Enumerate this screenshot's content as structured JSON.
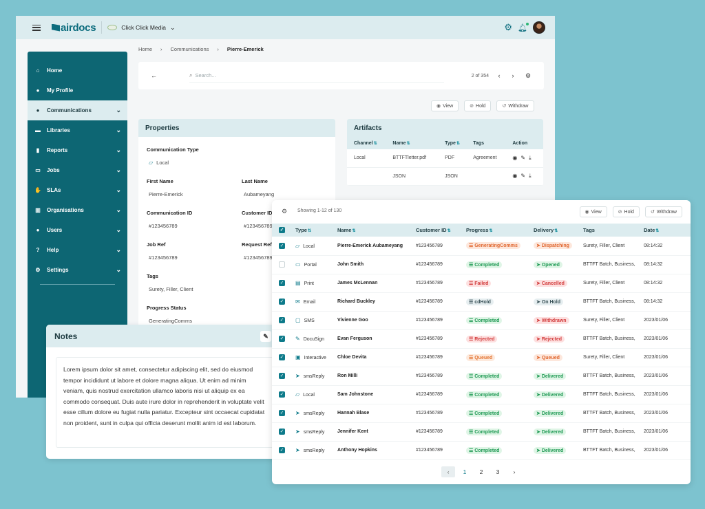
{
  "app": {
    "logo_text": "airdocs",
    "org_name": "Click Click Media"
  },
  "sidebar": {
    "items": [
      {
        "label": "Home",
        "icon": "home-icon"
      },
      {
        "label": "My Profile",
        "icon": "user-icon"
      },
      {
        "label": "Communications",
        "icon": "chat-icon"
      },
      {
        "label": "Libraries",
        "icon": "book-icon"
      },
      {
        "label": "Reports",
        "icon": "chart-icon"
      },
      {
        "label": "Jobs",
        "icon": "briefcase-icon"
      },
      {
        "label": "SLAs",
        "icon": "thumb-icon"
      },
      {
        "label": "Organisations",
        "icon": "building-icon"
      },
      {
        "label": "Users",
        "icon": "users-icon"
      },
      {
        "label": "Help",
        "icon": "help-icon"
      },
      {
        "label": "Settings",
        "icon": "gear-icon"
      }
    ]
  },
  "breadcrumb": [
    "Home",
    "Communications",
    "Pierre-Emerick"
  ],
  "search": {
    "placeholder": "Search...",
    "pager": "2 of 354"
  },
  "actions": {
    "view": "View",
    "hold": "Hold",
    "withdraw": "Withdraw"
  },
  "properties": {
    "title": "Properties",
    "comm_type_label": "Communication Type",
    "comm_type_value": "Local",
    "first_name_label": "First Name",
    "first_name_value": "Pierre-Emerick",
    "last_name_label": "Last Name",
    "last_name_value": "Aubameyang",
    "comm_id_label": "Communication ID",
    "comm_id_value": "#123456789",
    "customer_id_label": "Customer ID",
    "customer_id_value": "#123456789",
    "job_ref_label": "Job Ref",
    "job_ref_value": "#123456789",
    "request_ref_label": "Request Ref",
    "request_ref_value": "#123456789",
    "tags_label": "Tags",
    "tags_value": "Surety, Filler, Client",
    "progress_label": "Progress Status",
    "progress_value": "GeneratingComms"
  },
  "artifacts": {
    "title": "Artifacts",
    "columns": [
      "Channel",
      "Name",
      "Type",
      "Tags",
      "Action"
    ],
    "rows": [
      {
        "channel": "Local",
        "name": "BTTFTletter.pdf",
        "type": "PDF",
        "tags": "Agreement"
      },
      {
        "channel": "",
        "name": "JSON",
        "type": "JSON",
        "tags": ""
      }
    ]
  },
  "notes": {
    "title": "Notes",
    "body": "Lorem ipsum dolor sit amet, consectetur adipiscing elit, sed do eiusmod tempor incididunt ut labore et dolore magna aliqua. Ut enim ad minim veniam, quis nostrud exercitation ullamco laboris nisi ut aliquip ex ea commodo consequat. Duis aute irure dolor in reprehenderit in voluptate velit esse cillum dolore eu fugiat nulla pariatur. Excepteur sint occaecat cupidatat non proident, sunt in culpa qui officia deserunt mollit anim id est laborum."
  },
  "table": {
    "showing": "Showing 1-12 of 130",
    "columns": [
      "Type",
      "Name",
      "Customer ID",
      "Progress",
      "Delivery",
      "Tags",
      "Date"
    ],
    "rows": [
      {
        "checked": true,
        "type": "Local",
        "type_icon": "note",
        "name": "Pierre-Emerick Aubameyang",
        "cid": "#123456789",
        "progress": "GeneratingComms",
        "pcls": "p-gen",
        "delivery": "Dispatching",
        "dcls": "d-disp",
        "tags": "Surety, Filler, Client",
        "date": "08:14:32"
      },
      {
        "checked": false,
        "type": "Portal",
        "type_icon": "portal",
        "name": "John Smith",
        "cid": "#123456789",
        "progress": "Completed",
        "pcls": "p-comp",
        "delivery": "Opened",
        "dcls": "d-open",
        "tags": "BTTFT Batch, Business,",
        "date": "08:14:32"
      },
      {
        "checked": true,
        "type": "Print",
        "type_icon": "print",
        "name": "James McLennan",
        "cid": "#123456789",
        "progress": "Failed",
        "pcls": "p-fail",
        "delivery": "Cancelled",
        "dcls": "d-canc",
        "tags": "Surety, Filler, Client",
        "date": "08:14:32"
      },
      {
        "checked": true,
        "type": "Email",
        "type_icon": "email",
        "name": "Richard Buckley",
        "cid": "#123456789",
        "progress": "cdHold",
        "pcls": "p-hold",
        "delivery": "On Hold",
        "dcls": "d-onh",
        "tags": "BTTFT Batch, Business,",
        "date": "08:14:32"
      },
      {
        "checked": true,
        "type": "SMS",
        "type_icon": "sms",
        "name": "Vivienne Goo",
        "cid": "#123456789",
        "progress": "Completed",
        "pcls": "p-comp",
        "delivery": "Withdrawn",
        "dcls": "d-with",
        "tags": "Surety, Filler, Client",
        "date": "2023/01/06"
      },
      {
        "checked": true,
        "type": "DocuSign",
        "type_icon": "docusign",
        "name": "Evan Ferguson",
        "cid": "#123456789",
        "progress": "Rejected",
        "pcls": "p-rej",
        "delivery": "Rejected",
        "dcls": "d-canc",
        "tags": "BTTFT Batch, Business,",
        "date": "2023/01/06"
      },
      {
        "checked": true,
        "type": "Interactive",
        "type_icon": "interactive",
        "name": "Chloe Devita",
        "cid": "#123456789",
        "progress": "Queued",
        "pcls": "p-que",
        "delivery": "Queued",
        "dcls": "d-disp",
        "tags": "Surety, Filler, Client",
        "date": "2023/01/06"
      },
      {
        "checked": true,
        "type": "smsReply",
        "type_icon": "send",
        "name": "Ron Milli",
        "cid": "#123456789",
        "progress": "Completed",
        "pcls": "p-comp",
        "delivery": "Delivered",
        "dcls": "d-deliv",
        "tags": "BTTFT Batch, Business,",
        "date": "2023/01/06"
      },
      {
        "checked": true,
        "type": "Local",
        "type_icon": "note",
        "name": "Sam Johnstone",
        "cid": "#123456789",
        "progress": "Completed",
        "pcls": "p-comp",
        "delivery": "Delivered",
        "dcls": "d-deliv",
        "tags": "BTTFT Batch, Business,",
        "date": "2023/01/06"
      },
      {
        "checked": true,
        "type": "smsReply",
        "type_icon": "send",
        "name": "Hannah Blase",
        "cid": "#123456789",
        "progress": "Completed",
        "pcls": "p-comp",
        "delivery": "Delivered",
        "dcls": "d-deliv",
        "tags": "BTTFT Batch, Business,",
        "date": "2023/01/06"
      },
      {
        "checked": true,
        "type": "smsReply",
        "type_icon": "send",
        "name": "Jennifer Kent",
        "cid": "#123456789",
        "progress": "Completed",
        "pcls": "p-comp",
        "delivery": "Delivered",
        "dcls": "d-deliv",
        "tags": "BTTFT Batch, Business,",
        "date": "2023/01/06"
      },
      {
        "checked": true,
        "type": "smsReply",
        "type_icon": "send",
        "name": "Anthony Hopkins",
        "cid": "#123456789",
        "progress": "Completed",
        "pcls": "p-comp",
        "delivery": "Delivered",
        "dcls": "d-deliv",
        "tags": "BTTFT Batch, Business,",
        "date": "2023/01/06"
      }
    ],
    "pages": [
      "1",
      "2",
      "3"
    ]
  }
}
